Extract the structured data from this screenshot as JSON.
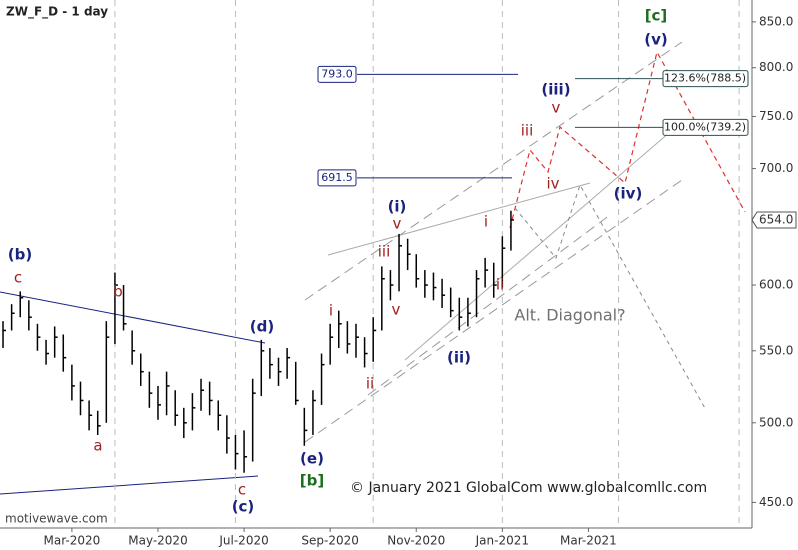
{
  "chart_data": {
    "type": "ohlc",
    "title": "ZW_F_D - 1 day",
    "watermark": "motivewave.com",
    "copyright": "© January 2021 GlobalCom www.globalcomllc.com",
    "log": true,
    "ylim": [
      435,
      875
    ],
    "yticks": [
      {
        "value": 450,
        "label": "450.0"
      },
      {
        "value": 500,
        "label": "500.0"
      },
      {
        "value": 550,
        "label": "550.0"
      },
      {
        "value": 600,
        "label": "600.0"
      },
      {
        "value": 700,
        "label": "700.0"
      },
      {
        "value": 750,
        "label": "750.0"
      },
      {
        "value": 800,
        "label": "800.0"
      },
      {
        "value": 850,
        "label": "850.0"
      }
    ],
    "xlim": [
      0.33,
      17.8
    ],
    "xticks": [
      {
        "value": 2,
        "label": "Mar-2020"
      },
      {
        "value": 4,
        "label": "May-2020"
      },
      {
        "value": 6,
        "label": "Jul-2020"
      },
      {
        "value": 8,
        "label": "Sep-2020"
      },
      {
        "value": 10,
        "label": "Nov-2020"
      },
      {
        "value": 12,
        "label": "Jan-2021"
      },
      {
        "value": 14,
        "label": "Mar-2021"
      }
    ],
    "x_gridlines": [
      3,
      5.8,
      9,
      12,
      14.7,
      17.5
    ],
    "color": "#000000",
    "x": [
      0.4,
      0.6,
      0.8,
      1.0,
      1.2,
      1.4,
      1.6,
      1.8,
      2.0,
      2.2,
      2.4,
      2.6,
      2.8,
      3.0,
      3.2,
      3.4,
      3.6,
      3.8,
      4.0,
      4.2,
      4.4,
      4.6,
      4.8,
      5.0,
      5.2,
      5.4,
      5.6,
      5.8,
      6.0,
      6.2,
      6.4,
      6.6,
      6.8,
      7.0,
      7.2,
      7.4,
      7.6,
      7.8,
      8.0,
      8.2,
      8.4,
      8.6,
      8.8,
      9.0,
      9.2,
      9.4,
      9.6,
      9.8,
      10.0,
      10.2,
      10.4,
      10.6,
      10.8,
      11.0,
      11.2,
      11.4,
      11.6,
      11.8,
      12.0,
      12.2
    ],
    "high": [
      572,
      585,
      595,
      588,
      570,
      558,
      568,
      562,
      540,
      528,
      515,
      508,
      572,
      610,
      600,
      565,
      548,
      535,
      525,
      535,
      522,
      510,
      520,
      530,
      528,
      515,
      505,
      492,
      495,
      530,
      558,
      552,
      545,
      552,
      542,
      510,
      522,
      548,
      570,
      580,
      572,
      570,
      560,
      575,
      615,
      612,
      642,
      638,
      625,
      612,
      610,
      605,
      598,
      590,
      590,
      612,
      622,
      618,
      640,
      662
    ],
    "low": [
      552,
      565,
      575,
      565,
      550,
      540,
      545,
      535,
      515,
      505,
      495,
      492,
      500,
      555,
      565,
      540,
      525,
      510,
      502,
      505,
      498,
      490,
      495,
      508,
      505,
      495,
      480,
      470,
      468,
      475,
      518,
      530,
      525,
      530,
      512,
      485,
      492,
      512,
      540,
      552,
      548,
      545,
      538,
      542,
      565,
      588,
      595,
      612,
      598,
      590,
      588,
      582,
      575,
      565,
      568,
      575,
      598,
      590,
      598,
      628
    ],
    "close": [
      565,
      578,
      590,
      575,
      560,
      548,
      560,
      545,
      525,
      515,
      505,
      498,
      560,
      600,
      570,
      550,
      535,
      520,
      512,
      525,
      505,
      500,
      510,
      522,
      515,
      505,
      490,
      480,
      478,
      520,
      550,
      540,
      535,
      545,
      515,
      495,
      515,
      540,
      560,
      570,
      555,
      560,
      548,
      565,
      605,
      600,
      632,
      625,
      605,
      600,
      598,
      592,
      580,
      575,
      578,
      605,
      612,
      600,
      630,
      654
    ],
    "last_price": {
      "value": 654,
      "label": "654.0"
    },
    "levels": [
      {
        "value": 793,
        "label": "793.0",
        "color": "#1a237e"
      },
      {
        "value": 691.5,
        "label": "691.5",
        "color": "#1a237e"
      }
    ],
    "fib_levels": [
      {
        "value": 788.5,
        "label": "123.6%(788.5)",
        "color": "#2f4f4f"
      },
      {
        "value": 739.2,
        "label": "100.0%(739.2)",
        "color": "#2f4f4f"
      }
    ],
    "annotations": [
      {
        "text": "(b)",
        "color": "#1a237e"
      },
      {
        "text": "c",
        "color": "#a02020"
      },
      {
        "text": "b",
        "color": "#a02020"
      },
      {
        "text": "a",
        "color": "#a02020"
      },
      {
        "text": "(d)",
        "color": "#1a237e"
      },
      {
        "text": "c",
        "color": "#a02020"
      },
      {
        "text": "(c)",
        "color": "#1a237e"
      },
      {
        "text": "(e)",
        "color": "#1a237e"
      },
      {
        "text": "[b]",
        "color": "#1b6e1b"
      },
      {
        "text": "i",
        "color": "#a02020"
      },
      {
        "text": "ii",
        "color": "#a02020"
      },
      {
        "text": "iii",
        "color": "#a02020"
      },
      {
        "text": "v",
        "color": "#a02020"
      },
      {
        "text": "(i)",
        "color": "#1a237e"
      },
      {
        "text": "v",
        "color": "#a02020"
      },
      {
        "text": "(ii)",
        "color": "#1a237e"
      },
      {
        "text": "i",
        "color": "#a02020"
      },
      {
        "text": "ii",
        "color": "#a02020"
      },
      {
        "text": "iii",
        "color": "#a02020"
      },
      {
        "text": "iv",
        "color": "#a02020"
      },
      {
        "text": "(iii)",
        "color": "#1a237e"
      },
      {
        "text": "v",
        "color": "#a02020"
      },
      {
        "text": "(iv)",
        "color": "#1a237e"
      },
      {
        "text": "(v)",
        "color": "#1a237e"
      },
      {
        "text": "[c]",
        "color": "#1b6e1b"
      },
      {
        "text": "Alt. Diagonal?",
        "color": "#707070"
      }
    ]
  }
}
